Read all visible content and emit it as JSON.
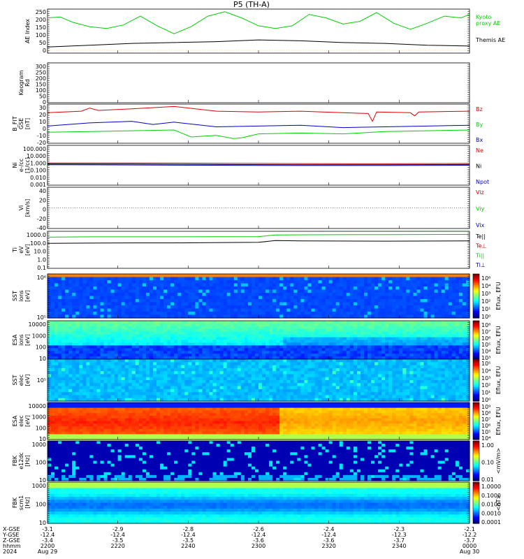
{
  "title": "P5 (TH-A)",
  "colors": {
    "green": "#00d000",
    "red": "#dd0000",
    "blue": "#0000cc",
    "black": "#000000",
    "orange": "#ff8c00"
  },
  "chart_data": [
    {
      "id": "ae",
      "type": "line",
      "ylabel": [
        "AE Index"
      ],
      "ylim": [
        0,
        250
      ],
      "yticks": [
        "250",
        "200",
        "150",
        "100",
        "50",
        "0"
      ],
      "legend": [
        {
          "text": "Kyoto",
          "color": "green"
        },
        {
          "text": "proxy AE",
          "color": "green"
        },
        {
          "text": "Themis AE",
          "color": "black"
        }
      ],
      "series": [
        {
          "name": "Kyoto proxy AE",
          "color": "green",
          "x": [
            0,
            0.03,
            0.06,
            0.1,
            0.14,
            0.18,
            0.22,
            0.26,
            0.3,
            0.34,
            0.38,
            0.42,
            0.46,
            0.5,
            0.54,
            0.58,
            0.62,
            0.66,
            0.7,
            0.74,
            0.78,
            0.82,
            0.86,
            0.9,
            0.94,
            0.98,
            1
          ],
          "values": [
            200,
            205,
            175,
            150,
            140,
            160,
            210,
            155,
            110,
            150,
            210,
            235,
            200,
            155,
            140,
            155,
            220,
            200,
            165,
            180,
            230,
            170,
            135,
            170,
            210,
            200,
            220
          ]
        },
        {
          "name": "Themis AE",
          "color": "black",
          "x": [
            0,
            0.1,
            0.2,
            0.3,
            0.4,
            0.5,
            0.6,
            0.7,
            0.8,
            0.9,
            1
          ],
          "values": [
            35,
            45,
            55,
            60,
            65,
            75,
            70,
            60,
            55,
            45,
            40
          ]
        }
      ]
    },
    {
      "id": "keogram",
      "type": "line",
      "ylabel": [
        "Keogram",
        "Rd"
      ],
      "ylim": [
        0,
        300
      ],
      "yticks": [
        "300",
        "250",
        "200",
        "150",
        "100",
        "50",
        "0"
      ]
    },
    {
      "id": "bfield",
      "type": "line",
      "ylabel": [
        "B_FIT",
        "GSE",
        "[nT]"
      ],
      "ylim": [
        -20,
        30
      ],
      "yticks": [
        "30",
        "20",
        "10",
        "0",
        "-10",
        "-20"
      ],
      "legend": [
        {
          "text": "Bz",
          "color": "red"
        },
        {
          "text": "By",
          "color": "green"
        },
        {
          "text": "Bx",
          "color": "blue"
        }
      ],
      "series": [
        {
          "name": "Bz",
          "color": "red",
          "x": [
            0,
            0.08,
            0.1,
            0.12,
            0.2,
            0.3,
            0.4,
            0.5,
            0.6,
            0.7,
            0.76,
            0.77,
            0.78,
            0.86,
            0.87,
            0.88,
            1
          ],
          "values": [
            19,
            21,
            25,
            22,
            24,
            27,
            21,
            20,
            21,
            19,
            18,
            8,
            20,
            19,
            15,
            20,
            21
          ]
        },
        {
          "name": "By",
          "color": "green",
          "x": [
            0,
            0.1,
            0.2,
            0.3,
            0.34,
            0.4,
            0.44,
            0.46,
            0.5,
            0.6,
            0.7,
            0.8,
            0.9,
            1
          ],
          "values": [
            -6,
            -5,
            -4,
            -3,
            -12,
            -10,
            -14,
            -13,
            -8,
            -7,
            -8,
            -5,
            -4,
            -3
          ]
        },
        {
          "name": "Bx",
          "color": "blue",
          "x": [
            0,
            0.1,
            0.2,
            0.25,
            0.3,
            0.4,
            0.5,
            0.6,
            0.7,
            0.8,
            0.9,
            1
          ],
          "values": [
            2,
            6,
            8,
            4,
            7,
            1,
            2,
            3,
            0,
            1,
            2,
            3
          ]
        }
      ]
    },
    {
      "id": "density",
      "type": "line",
      "ylabel": [
        "Ni",
        "e-/cc",
        "[1/cc]"
      ],
      "ylog": true,
      "ylim": [
        0.001,
        1000
      ],
      "yticks": [
        "100.000",
        "10.000",
        "1.000",
        "0.100",
        "0.010",
        "0.001"
      ],
      "legend": [
        {
          "text": "Ne",
          "color": "red"
        },
        {
          "text": "Ni",
          "color": "black"
        },
        {
          "text": "Npot",
          "color": "blue"
        }
      ],
      "series": [
        {
          "name": "Ne",
          "color": "red",
          "x": [
            0,
            0.2,
            0.4,
            0.6,
            0.8,
            1
          ],
          "values": [
            2.2,
            2.2,
            2.0,
            1.8,
            1.7,
            1.9
          ]
        },
        {
          "name": "Ni",
          "color": "black",
          "x": [
            0,
            0.2,
            0.4,
            0.6,
            0.8,
            1
          ],
          "values": [
            1.6,
            1.5,
            1.3,
            1.2,
            1.2,
            1.3
          ]
        },
        {
          "name": "Npot",
          "color": "blue",
          "x": [
            0,
            0.2,
            0.4,
            0.6,
            0.8,
            1
          ],
          "values": [
            1.2,
            1.1,
            1.0,
            0.9,
            0.9,
            1.0
          ]
        }
      ]
    },
    {
      "id": "velocity",
      "type": "line",
      "ylabel": [
        "Vi",
        "[km/s]"
      ],
      "ylim": [
        -50,
        50
      ],
      "yticks": [
        "40",
        "20",
        "0",
        "-20",
        "-40"
      ],
      "legend": [
        {
          "text": "Viz",
          "color": "red"
        },
        {
          "text": "Viy",
          "color": "green"
        },
        {
          "text": "Vix",
          "color": "blue"
        }
      ]
    },
    {
      "id": "temp",
      "type": "line",
      "ylabel": [
        "Ti",
        "eV",
        "[eV]"
      ],
      "ylog": true,
      "ylim": [
        0.1,
        5000
      ],
      "yticks": [
        "1000.0",
        "100.0",
        "10.0",
        "1.0",
        "0.1"
      ],
      "legend": [
        {
          "text": "Te||",
          "color": "black"
        },
        {
          "text": "Te⊥",
          "color": "red"
        },
        {
          "text": "Ti||",
          "color": "green"
        },
        {
          "text": "Ti⊥",
          "color": "blue"
        }
      ],
      "series": [
        {
          "name": "Ti",
          "color": "green",
          "x": [
            0,
            0.1,
            0.2,
            0.3,
            0.5,
            0.54,
            0.6,
            0.8,
            1
          ],
          "values": [
            900,
            1000,
            1000,
            1000,
            1050,
            1700,
            1800,
            1900,
            2000
          ]
        },
        {
          "name": "Te",
          "color": "black",
          "x": [
            0,
            0.1,
            0.2,
            0.3,
            0.5,
            0.54,
            0.6,
            0.8,
            1
          ],
          "values": [
            150,
            160,
            170,
            170,
            200,
            330,
            300,
            280,
            300
          ]
        }
      ]
    },
    {
      "id": "sst_ion",
      "type": "heatmap",
      "ylabel": [
        "SST",
        "ions",
        "[eV]"
      ],
      "yticks": [
        "10⁶",
        "10⁵"
      ],
      "colorbar": {
        "label": "Eflux, EFU",
        "ticks": [
          "10⁶",
          "10⁴",
          "10³",
          "10²",
          "10¹",
          "10⁰"
        ]
      }
    },
    {
      "id": "esa_ion",
      "type": "heatmap",
      "ylabel": [
        "ESA",
        "ions",
        "[eV]"
      ],
      "yticks": [
        "10000",
        "1000",
        "100",
        "10"
      ],
      "colorbar": {
        "label": "Eflux, EFU",
        "ticks": [
          "10⁸",
          "10⁷",
          "10⁶",
          "10⁵",
          "10⁴",
          "10³"
        ]
      }
    },
    {
      "id": "sst_elec",
      "type": "heatmap",
      "ylabel": [
        "SST",
        "elec",
        "[eV]"
      ],
      "yticks": [
        "10⁵"
      ],
      "colorbar": {
        "label": "Eflux, EFU",
        "ticks": [
          "10⁵",
          "10⁴",
          "10³",
          "10²",
          "10¹",
          "10⁰"
        ]
      }
    },
    {
      "id": "esa_elec",
      "type": "heatmap",
      "ylabel": [
        "ESA",
        "elec",
        "[eV]"
      ],
      "yticks": [
        "10000",
        "1000",
        "100",
        "10"
      ],
      "colorbar": {
        "label": "Eflux, EFU",
        "ticks": [
          "10⁹",
          "10⁸",
          "10⁷",
          "10⁶",
          "10⁵",
          "10⁴"
        ]
      }
    },
    {
      "id": "fbk_e",
      "type": "heatmap",
      "ylabel": [
        "FBK",
        "e12dc",
        "[Hz]"
      ],
      "yticks": [
        "1000",
        "100",
        "10"
      ],
      "colorbar": {
        "label": "<mV/m>",
        "ticks": [
          "1.00",
          "0.10",
          "0.01"
        ]
      }
    },
    {
      "id": "fbk_b",
      "type": "heatmap",
      "ylabel": [
        "FBK",
        "scm1",
        "[Hz]"
      ],
      "yticks": [
        "1000",
        "100",
        "10"
      ],
      "colorbar": {
        "label": "<nT>",
        "ticks": [
          "1.0000",
          "0.1000",
          "0.0100",
          "0.0010",
          "0.0001"
        ]
      }
    }
  ],
  "xaxis": {
    "row_labels": [
      "X-GSE",
      "Y-GSE",
      "Z-GSE",
      "hhmm",
      "2024"
    ],
    "ticks": [
      {
        "vals": [
          "-3.1",
          "-12.4",
          "-3.4",
          "2200",
          "Aug 29"
        ]
      },
      {
        "vals": [
          "-2.9",
          "-12.4",
          "-3.5",
          "2220",
          ""
        ]
      },
      {
        "vals": [
          "-2.8",
          "-12.4",
          "-3.5",
          "2240",
          ""
        ]
      },
      {
        "vals": [
          "-2.6",
          "-12.4",
          "-3.6",
          "2300",
          ""
        ]
      },
      {
        "vals": [
          "-2.4",
          "-12.4",
          "-3.6",
          "2320",
          ""
        ]
      },
      {
        "vals": [
          "-2.3",
          "-12.3",
          "-3.7",
          "2340",
          ""
        ]
      },
      {
        "vals": [
          "-2.1",
          "-12.2",
          "-3.7",
          "0000",
          "Aug 30"
        ]
      }
    ]
  }
}
